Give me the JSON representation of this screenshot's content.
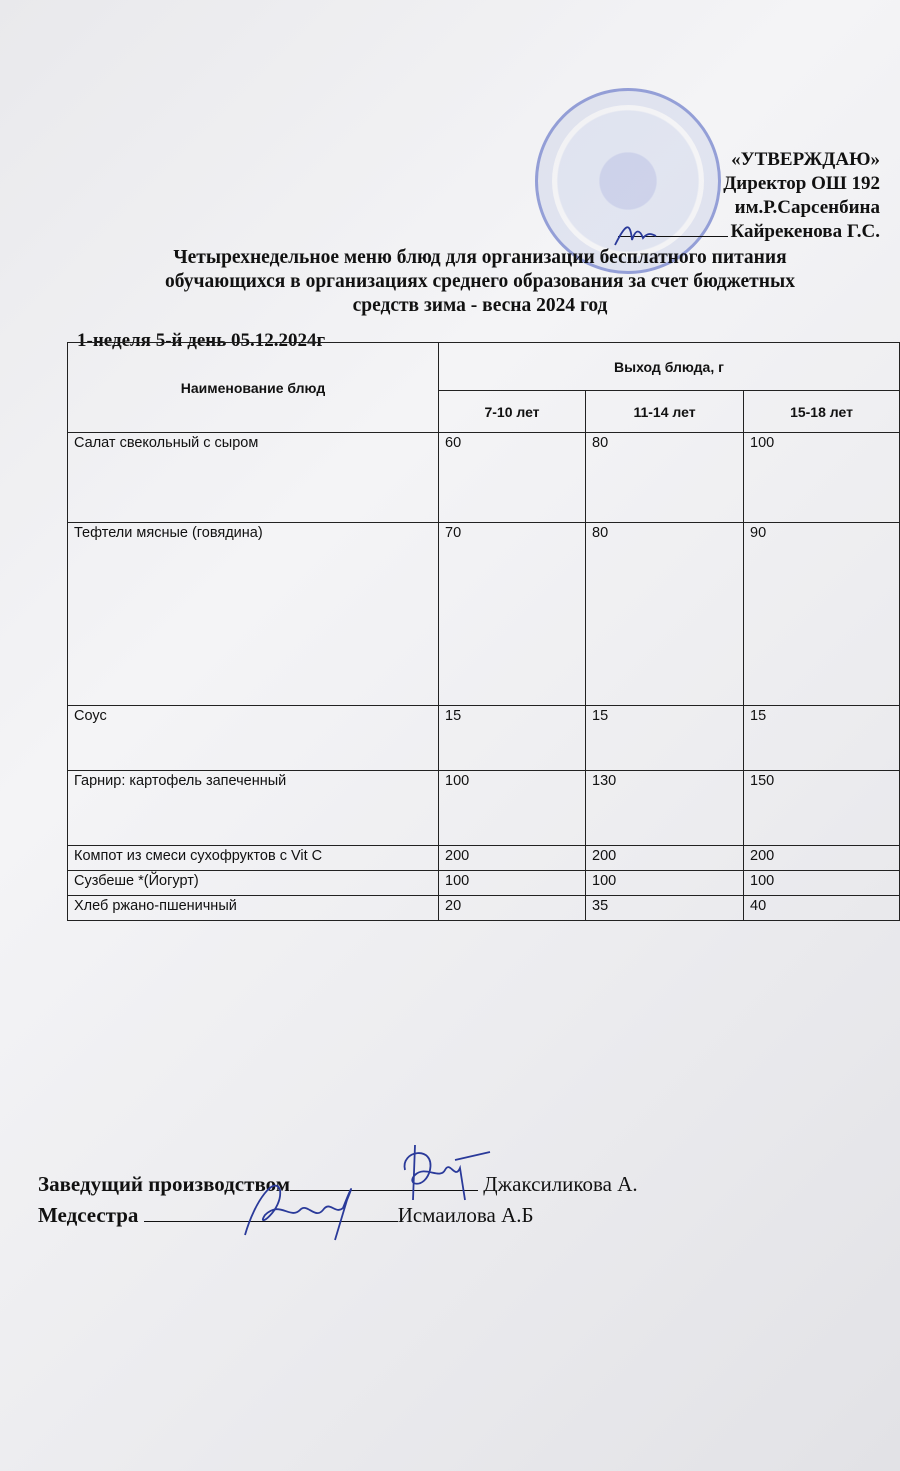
{
  "approval": {
    "heading": "«УТВЕРЖДАЮ»",
    "position": "Директор ОШ 192",
    "school": "им.Р.Сарсенбина",
    "name": "Кайрекенова Г.С."
  },
  "title": {
    "line1": "Четырехнедельное меню блюд для организации бесплатного питания",
    "line2": "обучающихся в организациях среднего образования за счет бюджетных",
    "line3": "средств зима - весна 2024 год"
  },
  "day_label": "1-неделя 5-й день 05.12.2024г",
  "table": {
    "header_name": "Наименование блюд",
    "header_output": "Выход блюда, г",
    "age_groups": [
      "7-10 лет",
      "11-14 лет",
      "15-18 лет"
    ],
    "rows": [
      {
        "dish": "Салат свекольный с сыром",
        "values": [
          "60",
          "80",
          "100"
        ]
      },
      {
        "dish": "Тефтели мясные (говядина)",
        "values": [
          "70",
          "80",
          "90"
        ]
      },
      {
        "dish": "Соус",
        "values": [
          "15",
          "15",
          "15"
        ]
      },
      {
        "dish": "Гарнир:  картофель запеченный",
        "values": [
          "100",
          "130",
          "150"
        ]
      },
      {
        "dish": "Компот из смеси сухофруктов с Vit C",
        "values": [
          "200",
          "200",
          "200"
        ]
      },
      {
        "dish": "Сузбеше *(Йогурт)",
        "values": [
          "100",
          "100",
          "100"
        ]
      },
      {
        "dish": "Хлеб ржано-пшеничный",
        "values": [
          "20",
          "35",
          "40"
        ]
      }
    ]
  },
  "signatures": {
    "production_label": "Заведущий производством",
    "production_name": "Джаксиликова А.",
    "nurse_label": "Медсестра",
    "nurse_name": "Исмаилова А.Б"
  },
  "colors": {
    "stamp": "#5a6ec8",
    "ink": "#2a3a9a"
  }
}
